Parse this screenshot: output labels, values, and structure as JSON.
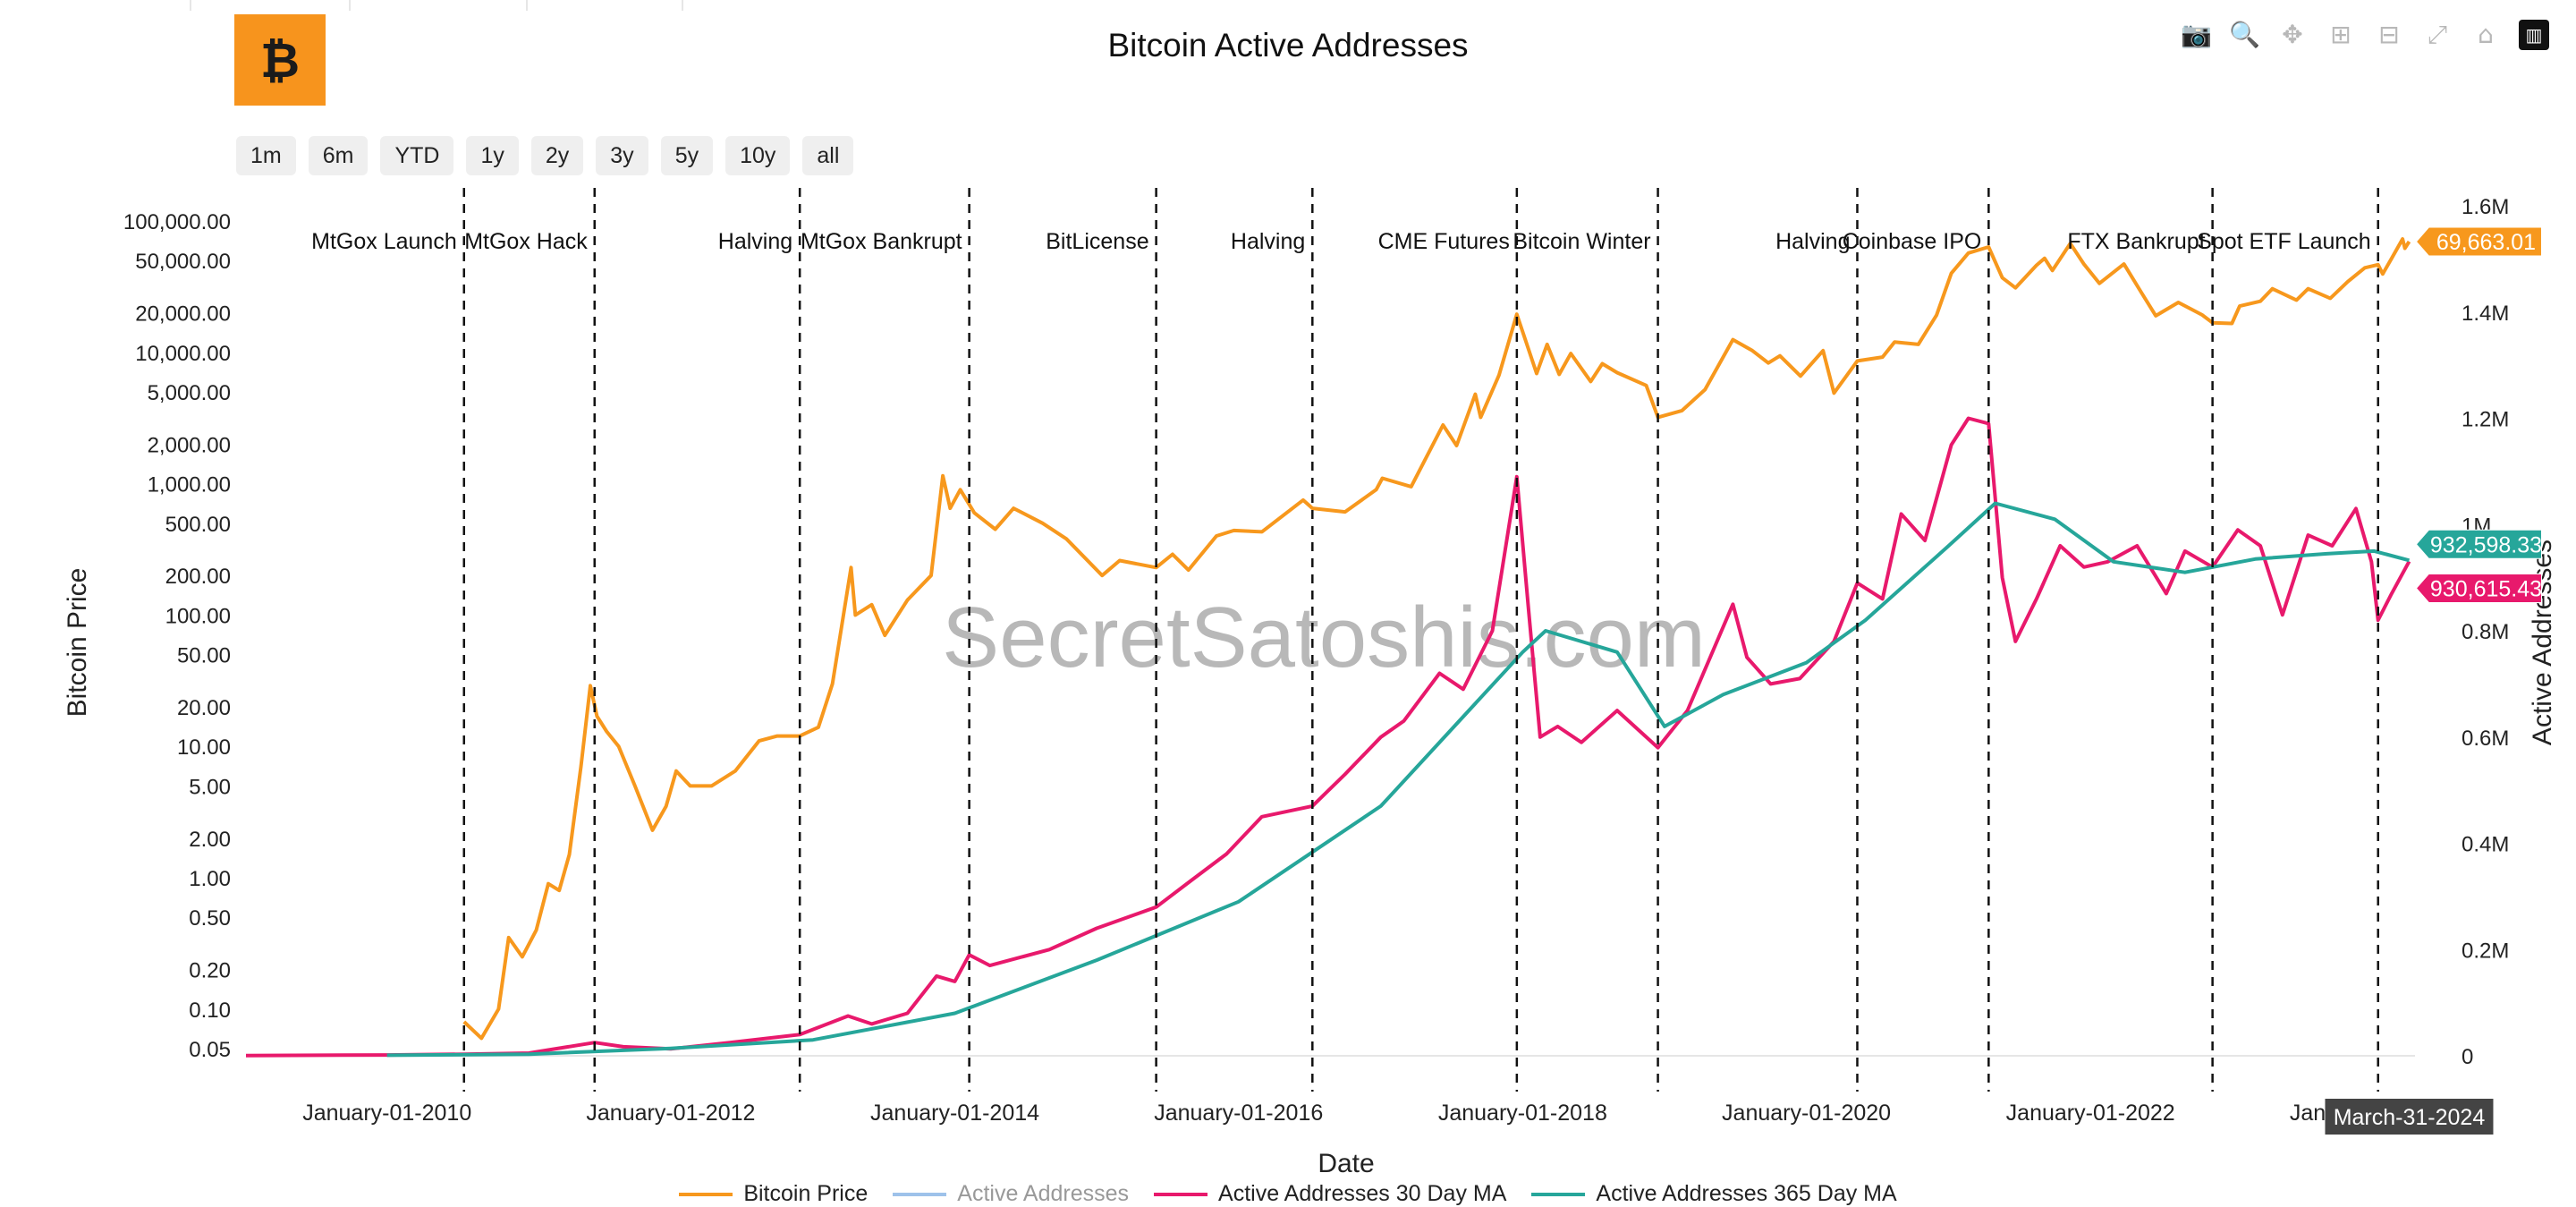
{
  "title": "Bitcoin Active Addresses",
  "watermark": "SecretSatoshis.com",
  "logo_icon": "bitcoin-logo-icon",
  "range_buttons": [
    "1m",
    "6m",
    "YTD",
    "1y",
    "2y",
    "3y",
    "5y",
    "10y",
    "all"
  ],
  "modebar": [
    {
      "name": "camera-icon",
      "glyph": "📷"
    },
    {
      "name": "zoom-icon",
      "glyph": "🔍"
    },
    {
      "name": "pan-icon",
      "glyph": "✥"
    },
    {
      "name": "zoom-in-icon",
      "glyph": "⊞"
    },
    {
      "name": "zoom-out-icon",
      "glyph": "⊟"
    },
    {
      "name": "autoscale-icon",
      "glyph": "⤢"
    },
    {
      "name": "reset-axes-icon",
      "glyph": "⌂"
    },
    {
      "name": "plotly-logo-icon",
      "glyph": "▥"
    }
  ],
  "colors": {
    "price": "#f7981d",
    "active": "#9ec2ea",
    "ma30": "#e8196c",
    "ma365": "#26a69a",
    "grid": "#e6e6e6"
  },
  "chart_data": {
    "type": "line",
    "xlabel": "Date",
    "ylabel_left": "Bitcoin Price",
    "ylabel_right": "Active Addresses",
    "y_left_scale": "log",
    "y_left_ticks": [
      "100,000.00",
      "50,000.00",
      "20,000.00",
      "10,000.00",
      "5,000.00",
      "2,000.00",
      "1,000.00",
      "500.00",
      "200.00",
      "100.00",
      "50.00",
      "20.00",
      "10.00",
      "5.00",
      "2.00",
      "1.00",
      "0.50",
      "0.20",
      "0.10",
      "0.05"
    ],
    "y_right_ticks": [
      "1.6M",
      "1.4M",
      "1.2M",
      "1M",
      "0.8M",
      "0.6M",
      "0.4M",
      "0.2M",
      "0"
    ],
    "y_right_range": [
      0,
      1600000
    ],
    "x_range": [
      "2009-01-03",
      "2024-04-15"
    ],
    "x_ticks": [
      {
        "date": "2010-01-01",
        "label": "January-01-2010"
      },
      {
        "date": "2012-01-01",
        "label": "January-01-2012"
      },
      {
        "date": "2014-01-01",
        "label": "January-01-2014"
      },
      {
        "date": "2016-01-01",
        "label": "January-01-2016"
      },
      {
        "date": "2018-01-01",
        "label": "January-01-2018"
      },
      {
        "date": "2020-01-01",
        "label": "January-01-2020"
      },
      {
        "date": "2022-01-01",
        "label": "January-01-2022"
      },
      {
        "date": "2024-01-01",
        "label": "January-01-2024"
      }
    ],
    "events": [
      {
        "date": "2010-07-18",
        "label": "MtGox Launch"
      },
      {
        "date": "2011-06-19",
        "label": "MtGox Hack"
      },
      {
        "date": "2012-11-28",
        "label": "Halving"
      },
      {
        "date": "2014-02-07",
        "label": "MtGox Bankrupt"
      },
      {
        "date": "2015-06-03",
        "label": "BitLicense"
      },
      {
        "date": "2016-07-09",
        "label": "Halving"
      },
      {
        "date": "2017-12-17",
        "label": "CME Futures"
      },
      {
        "date": "2018-12-15",
        "label": "Bitcoin Winter"
      },
      {
        "date": "2020-05-11",
        "label": "Halving"
      },
      {
        "date": "2021-04-14",
        "label": "Coinbase IPO"
      },
      {
        "date": "2022-11-11",
        "label": "FTX Bankrupt"
      },
      {
        "date": "2024-01-11",
        "label": "Spot ETF Launch"
      }
    ],
    "hover": {
      "date_label": "March-31-2024",
      "price_label": "69,663.01",
      "ma365_label": "932,598.33",
      "ma30_label": "930,615.43"
    },
    "series": [
      {
        "name": "Bitcoin Price",
        "axis": "left",
        "points": [
          [
            "2010-07-18",
            0.08
          ],
          [
            "2010-09-01",
            0.06
          ],
          [
            "2010-10-15",
            0.1
          ],
          [
            "2010-11-10",
            0.35
          ],
          [
            "2010-12-15",
            0.25
          ],
          [
            "2011-01-20",
            0.4
          ],
          [
            "2011-02-20",
            0.9
          ],
          [
            "2011-03-20",
            0.8
          ],
          [
            "2011-04-15",
            1.5
          ],
          [
            "2011-05-15",
            7
          ],
          [
            "2011-06-08",
            29
          ],
          [
            "2011-06-25",
            17
          ],
          [
            "2011-07-20",
            13
          ],
          [
            "2011-08-20",
            10
          ],
          [
            "2011-10-01",
            5
          ],
          [
            "2011-11-15",
            2.3
          ],
          [
            "2011-12-20",
            3.5
          ],
          [
            "2012-01-15",
            6.5
          ],
          [
            "2012-02-20",
            5
          ],
          [
            "2012-04-15",
            5
          ],
          [
            "2012-06-15",
            6.5
          ],
          [
            "2012-08-15",
            11
          ],
          [
            "2012-10-01",
            12
          ],
          [
            "2012-11-28",
            12
          ],
          [
            "2013-01-15",
            14
          ],
          [
            "2013-02-20",
            30
          ],
          [
            "2013-04-09",
            230
          ],
          [
            "2013-04-20",
            100
          ],
          [
            "2013-06-01",
            120
          ],
          [
            "2013-07-05",
            70
          ],
          [
            "2013-09-01",
            130
          ],
          [
            "2013-11-01",
            200
          ],
          [
            "2013-12-01",
            1150
          ],
          [
            "2013-12-20",
            650
          ],
          [
            "2014-01-15",
            900
          ],
          [
            "2014-02-20",
            600
          ],
          [
            "2014-04-15",
            450
          ],
          [
            "2014-06-01",
            650
          ],
          [
            "2014-08-15",
            500
          ],
          [
            "2014-10-15",
            380
          ],
          [
            "2015-01-15",
            200
          ],
          [
            "2015-03-01",
            260
          ],
          [
            "2015-06-03",
            230
          ],
          [
            "2015-07-15",
            290
          ],
          [
            "2015-08-25",
            220
          ],
          [
            "2015-11-05",
            400
          ],
          [
            "2015-12-20",
            440
          ],
          [
            "2016-03-01",
            430
          ],
          [
            "2016-06-15",
            750
          ],
          [
            "2016-07-09",
            650
          ],
          [
            "2016-10-01",
            610
          ],
          [
            "2016-12-20",
            900
          ],
          [
            "2017-01-05",
            1100
          ],
          [
            "2017-03-20",
            950
          ],
          [
            "2017-06-10",
            2800
          ],
          [
            "2017-07-15",
            1950
          ],
          [
            "2017-09-01",
            4800
          ],
          [
            "2017-09-15",
            3200
          ],
          [
            "2017-11-01",
            6700
          ],
          [
            "2017-12-17",
            19500
          ],
          [
            "2018-02-06",
            6900
          ],
          [
            "2018-03-05",
            11500
          ],
          [
            "2018-04-05",
            6800
          ],
          [
            "2018-05-05",
            9800
          ],
          [
            "2018-06-25",
            6000
          ],
          [
            "2018-07-25",
            8200
          ],
          [
            "2018-09-01",
            7000
          ],
          [
            "2018-11-15",
            5600
          ],
          [
            "2018-12-15",
            3200
          ],
          [
            "2019-02-15",
            3600
          ],
          [
            "2019-04-15",
            5200
          ],
          [
            "2019-06-26",
            12500
          ],
          [
            "2019-08-15",
            10300
          ],
          [
            "2019-09-25",
            8300
          ],
          [
            "2019-10-25",
            9400
          ],
          [
            "2019-12-17",
            6600
          ],
          [
            "2020-02-13",
            10300
          ],
          [
            "2020-03-12",
            4900
          ],
          [
            "2020-05-11",
            8600
          ],
          [
            "2020-07-15",
            9200
          ],
          [
            "2020-08-15",
            12000
          ],
          [
            "2020-10-15",
            11500
          ],
          [
            "2020-12-01",
            19200
          ],
          [
            "2021-01-08",
            40000
          ],
          [
            "2021-02-21",
            57000
          ],
          [
            "2021-04-14",
            63500
          ],
          [
            "2021-05-19",
            37000
          ],
          [
            "2021-06-22",
            31000
          ],
          [
            "2021-08-15",
            46000
          ],
          [
            "2021-09-05",
            52000
          ],
          [
            "2021-09-25",
            42000
          ],
          [
            "2021-11-10",
            67500
          ],
          [
            "2021-12-15",
            47000
          ],
          [
            "2022-01-24",
            33500
          ],
          [
            "2022-03-28",
            47000
          ],
          [
            "2022-05-12",
            28500
          ],
          [
            "2022-06-18",
            19000
          ],
          [
            "2022-08-15",
            24000
          ],
          [
            "2022-10-15",
            19300
          ],
          [
            "2022-11-11",
            16800
          ],
          [
            "2022-12-31",
            16600
          ],
          [
            "2023-01-20",
            22500
          ],
          [
            "2023-03-14",
            24500
          ],
          [
            "2023-04-14",
            30500
          ],
          [
            "2023-06-15",
            25000
          ],
          [
            "2023-07-15",
            30500
          ],
          [
            "2023-09-10",
            25800
          ],
          [
            "2023-10-25",
            34500
          ],
          [
            "2023-12-08",
            44000
          ],
          [
            "2024-01-11",
            46500
          ],
          [
            "2024-01-23",
            39500
          ],
          [
            "2024-02-15",
            52000
          ],
          [
            "2024-03-14",
            73000
          ],
          [
            "2024-03-20",
            62000
          ],
          [
            "2024-03-31",
            69663
          ]
        ]
      },
      {
        "name": "Active Addresses",
        "axis": "right",
        "points": []
      },
      {
        "name": "Active Addresses 30 Day MA",
        "axis": "right",
        "points": [
          [
            "2009-01-03",
            500
          ],
          [
            "2010-01-01",
            1500
          ],
          [
            "2010-07-18",
            3000
          ],
          [
            "2011-01-01",
            5000
          ],
          [
            "2011-06-19",
            25000
          ],
          [
            "2011-09-01",
            17000
          ],
          [
            "2012-01-01",
            13000
          ],
          [
            "2012-06-01",
            25000
          ],
          [
            "2012-11-28",
            40000
          ],
          [
            "2013-04-01",
            75000
          ],
          [
            "2013-06-01",
            60000
          ],
          [
            "2013-09-01",
            80000
          ],
          [
            "2013-11-15",
            150000
          ],
          [
            "2014-01-01",
            140000
          ],
          [
            "2014-02-07",
            190000
          ],
          [
            "2014-04-01",
            170000
          ],
          [
            "2014-09-01",
            200000
          ],
          [
            "2015-01-01",
            240000
          ],
          [
            "2015-06-03",
            280000
          ],
          [
            "2015-09-01",
            330000
          ],
          [
            "2015-12-01",
            380000
          ],
          [
            "2016-03-01",
            450000
          ],
          [
            "2016-07-09",
            470000
          ],
          [
            "2016-10-01",
            530000
          ],
          [
            "2017-01-01",
            600000
          ],
          [
            "2017-03-01",
            630000
          ],
          [
            "2017-06-01",
            720000
          ],
          [
            "2017-08-01",
            690000
          ],
          [
            "2017-10-15",
            800000
          ],
          [
            "2017-12-17",
            1090000
          ],
          [
            "2018-01-15",
            850000
          ],
          [
            "2018-02-15",
            600000
          ],
          [
            "2018-04-01",
            620000
          ],
          [
            "2018-06-01",
            590000
          ],
          [
            "2018-09-01",
            650000
          ],
          [
            "2018-12-15",
            580000
          ],
          [
            "2019-03-01",
            650000
          ],
          [
            "2019-06-26",
            850000
          ],
          [
            "2019-08-01",
            750000
          ],
          [
            "2019-10-01",
            700000
          ],
          [
            "2019-12-15",
            710000
          ],
          [
            "2020-03-12",
            780000
          ],
          [
            "2020-05-11",
            890000
          ],
          [
            "2020-07-15",
            860000
          ],
          [
            "2020-09-01",
            1020000
          ],
          [
            "2020-11-01",
            970000
          ],
          [
            "2021-01-08",
            1150000
          ],
          [
            "2021-02-21",
            1200000
          ],
          [
            "2021-04-14",
            1190000
          ],
          [
            "2021-05-19",
            900000
          ],
          [
            "2021-06-22",
            780000
          ],
          [
            "2021-08-15",
            860000
          ],
          [
            "2021-10-15",
            960000
          ],
          [
            "2021-12-15",
            920000
          ],
          [
            "2022-02-15",
            930000
          ],
          [
            "2022-05-01",
            960000
          ],
          [
            "2022-07-15",
            870000
          ],
          [
            "2022-09-01",
            950000
          ],
          [
            "2022-11-11",
            920000
          ],
          [
            "2023-01-15",
            990000
          ],
          [
            "2023-03-14",
            960000
          ],
          [
            "2023-05-10",
            830000
          ],
          [
            "2023-07-15",
            980000
          ],
          [
            "2023-09-15",
            960000
          ],
          [
            "2023-11-15",
            1030000
          ],
          [
            "2023-12-25",
            930000
          ],
          [
            "2024-01-11",
            820000
          ],
          [
            "2024-02-15",
            870000
          ],
          [
            "2024-03-31",
            930615
          ]
        ]
      },
      {
        "name": "Active Addresses 365 Day MA",
        "axis": "right",
        "points": [
          [
            "2010-01-01",
            1000
          ],
          [
            "2011-01-01",
            3000
          ],
          [
            "2012-01-01",
            14000
          ],
          [
            "2013-01-01",
            30000
          ],
          [
            "2014-01-01",
            80000
          ],
          [
            "2015-01-01",
            180000
          ],
          [
            "2016-01-01",
            290000
          ],
          [
            "2017-01-01",
            470000
          ],
          [
            "2018-01-01",
            760000
          ],
          [
            "2018-03-01",
            800000
          ],
          [
            "2018-09-01",
            760000
          ],
          [
            "2019-01-01",
            620000
          ],
          [
            "2019-06-01",
            680000
          ],
          [
            "2020-01-01",
            740000
          ],
          [
            "2020-06-01",
            820000
          ],
          [
            "2021-01-01",
            960000
          ],
          [
            "2021-05-01",
            1040000
          ],
          [
            "2021-10-01",
            1010000
          ],
          [
            "2022-03-01",
            930000
          ],
          [
            "2022-09-01",
            910000
          ],
          [
            "2023-03-01",
            935000
          ],
          [
            "2023-09-01",
            945000
          ],
          [
            "2024-01-01",
            950000
          ],
          [
            "2024-03-31",
            932598
          ]
        ]
      }
    ]
  }
}
